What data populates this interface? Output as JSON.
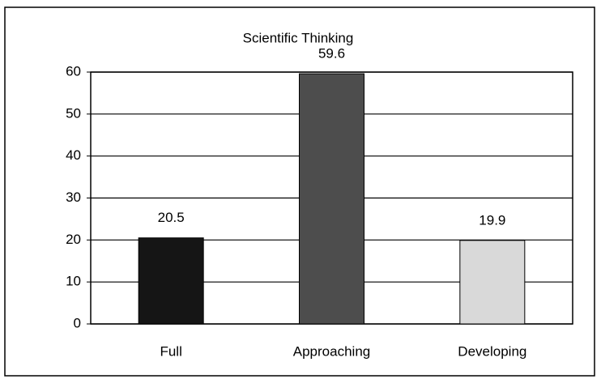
{
  "chart_data": {
    "type": "bar",
    "title": "Scientific Thinking",
    "categories": [
      "Full",
      "Approaching",
      "Developing"
    ],
    "values": [
      20.5,
      59.6,
      19.9
    ],
    "colors": [
      "#151515",
      "#4d4d4d",
      "#d9d9d9"
    ],
    "ylim": [
      0,
      60
    ],
    "yticks": [
      0,
      10,
      20,
      30,
      40,
      50,
      60
    ],
    "grid": true
  }
}
